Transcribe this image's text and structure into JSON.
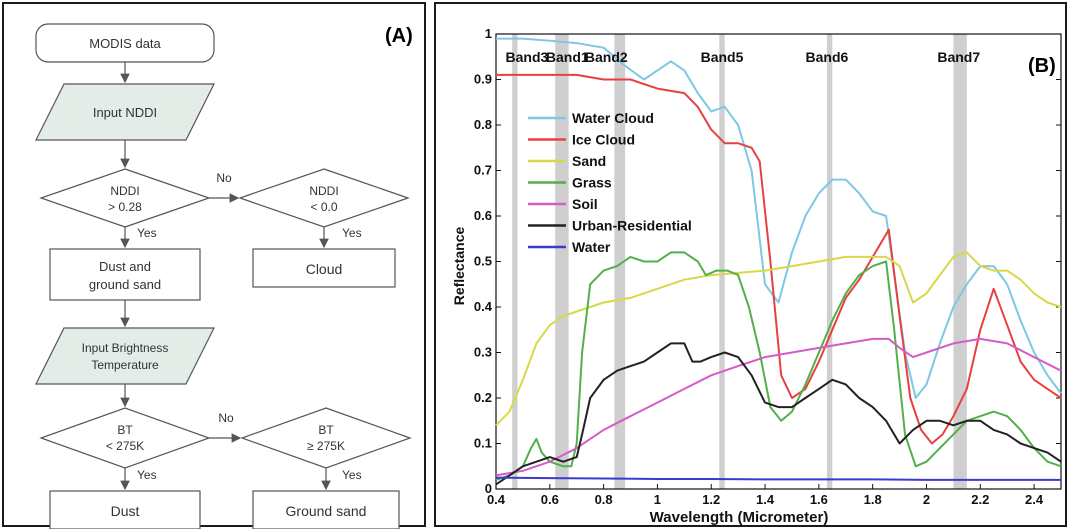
{
  "panel_a": {
    "label": "(A)",
    "nodes": {
      "modis": "MODIS data",
      "input_nddi": "Input NDDI",
      "nddi_gt_1": "NDDI",
      "nddi_gt_2": "> 0.28",
      "nddi_lt_1": "NDDI",
      "nddi_lt_2": "< 0.0",
      "dust_sand_1": "Dust and",
      "dust_sand_2": "ground sand",
      "cloud": "Cloud",
      "input_bt_1": "Input Brightness",
      "input_bt_2": "Temperature",
      "bt_lt_1": "BT",
      "bt_lt_2": "< 275K",
      "bt_ge_1": "BT",
      "bt_ge_2": "≥ 275K",
      "dust": "Dust",
      "ground_sand": "Ground sand"
    },
    "edges": {
      "no_1": "No",
      "yes_1": "Yes",
      "yes_2": "Yes",
      "no_2": "No",
      "yes_3": "Yes",
      "yes_4": "Yes"
    },
    "colors": {
      "io_fill": "#e4ece8",
      "stroke": "#555555"
    }
  },
  "chart_data": {
    "type": "line",
    "panel_label": "(B)",
    "xlabel": "Wavelength (Micrometer)",
    "ylabel": "Reflectance",
    "xlim": [
      0.4,
      2.5
    ],
    "ylim": [
      0,
      1
    ],
    "xticks": [
      "0.4",
      "0.6",
      "0.8",
      "1",
      "1.2",
      "1.4",
      "1.6",
      "1.8",
      "2",
      "2.2",
      "2.4"
    ],
    "yticks": [
      "0",
      "0.1",
      "0.2",
      "0.3",
      "0.4",
      "0.5",
      "0.6",
      "0.7",
      "0.8",
      "0.9",
      "1"
    ],
    "xtick_values": [
      0.4,
      0.6,
      0.8,
      1.0,
      1.2,
      1.4,
      1.6,
      1.8,
      2.0,
      2.2,
      2.4
    ],
    "ytick_values": [
      0,
      0.1,
      0.2,
      0.3,
      0.4,
      0.5,
      0.6,
      0.7,
      0.8,
      0.9,
      1.0
    ],
    "bands": [
      {
        "name": "Band3",
        "x0": 0.46,
        "x1": 0.48
      },
      {
        "name": "Band1",
        "x0": 0.62,
        "x1": 0.67
      },
      {
        "name": "Band2",
        "x0": 0.84,
        "x1": 0.88
      },
      {
        "name": "Band5",
        "x0": 1.23,
        "x1": 1.25
      },
      {
        "name": "Band6",
        "x0": 1.63,
        "x1": 1.65
      },
      {
        "name": "Band7",
        "x0": 2.1,
        "x1": 2.15
      }
    ],
    "band_labels": [
      "Band3",
      "Band1",
      "Band2",
      "Band5",
      "Band6",
      "Band7"
    ],
    "legend_position": "upper-left",
    "series": [
      {
        "name": "Water Cloud",
        "color": "#7ec8e3",
        "x": [
          0.4,
          0.5,
          0.6,
          0.7,
          0.8,
          0.88,
          0.95,
          1.0,
          1.05,
          1.1,
          1.15,
          1.2,
          1.25,
          1.3,
          1.35,
          1.4,
          1.45,
          1.5,
          1.55,
          1.6,
          1.65,
          1.7,
          1.75,
          1.8,
          1.85,
          1.88,
          1.92,
          1.96,
          2.0,
          2.05,
          2.1,
          2.15,
          2.2,
          2.25,
          2.3,
          2.35,
          2.4,
          2.45,
          2.5
        ],
        "y": [
          0.99,
          0.99,
          0.985,
          0.98,
          0.97,
          0.93,
          0.9,
          0.92,
          0.94,
          0.92,
          0.87,
          0.83,
          0.84,
          0.8,
          0.7,
          0.45,
          0.41,
          0.52,
          0.6,
          0.65,
          0.68,
          0.68,
          0.65,
          0.61,
          0.6,
          0.47,
          0.3,
          0.2,
          0.23,
          0.32,
          0.4,
          0.45,
          0.49,
          0.49,
          0.45,
          0.37,
          0.3,
          0.25,
          0.21
        ]
      },
      {
        "name": "Ice Cloud",
        "color": "#e84040",
        "x": [
          0.4,
          0.5,
          0.6,
          0.7,
          0.8,
          0.9,
          1.0,
          1.05,
          1.1,
          1.15,
          1.2,
          1.25,
          1.3,
          1.35,
          1.38,
          1.42,
          1.46,
          1.5,
          1.55,
          1.6,
          1.65,
          1.7,
          1.75,
          1.8,
          1.86,
          1.9,
          1.94,
          1.98,
          2.02,
          2.06,
          2.1,
          2.15,
          2.2,
          2.25,
          2.3,
          2.35,
          2.4,
          2.45,
          2.5
        ],
        "y": [
          0.91,
          0.91,
          0.91,
          0.91,
          0.9,
          0.9,
          0.88,
          0.875,
          0.87,
          0.84,
          0.79,
          0.76,
          0.76,
          0.75,
          0.72,
          0.5,
          0.25,
          0.2,
          0.22,
          0.28,
          0.35,
          0.42,
          0.46,
          0.51,
          0.57,
          0.38,
          0.2,
          0.13,
          0.1,
          0.12,
          0.16,
          0.22,
          0.35,
          0.44,
          0.36,
          0.28,
          0.24,
          0.22,
          0.2
        ]
      },
      {
        "name": "Sand",
        "color": "#d8d84a",
        "x": [
          0.4,
          0.45,
          0.5,
          0.55,
          0.6,
          0.65,
          0.7,
          0.8,
          0.9,
          1.0,
          1.1,
          1.2,
          1.3,
          1.4,
          1.5,
          1.6,
          1.7,
          1.8,
          1.85,
          1.9,
          1.95,
          2.0,
          2.05,
          2.1,
          2.15,
          2.2,
          2.25,
          2.3,
          2.35,
          2.4,
          2.45,
          2.5
        ],
        "y": [
          0.14,
          0.17,
          0.24,
          0.32,
          0.36,
          0.38,
          0.39,
          0.41,
          0.42,
          0.44,
          0.46,
          0.47,
          0.475,
          0.48,
          0.49,
          0.5,
          0.51,
          0.51,
          0.51,
          0.49,
          0.41,
          0.43,
          0.47,
          0.51,
          0.52,
          0.49,
          0.48,
          0.48,
          0.46,
          0.43,
          0.41,
          0.4
        ]
      },
      {
        "name": "Grass",
        "color": "#52b04a",
        "x": [
          0.4,
          0.45,
          0.5,
          0.53,
          0.55,
          0.57,
          0.6,
          0.65,
          0.68,
          0.7,
          0.72,
          0.75,
          0.8,
          0.85,
          0.9,
          0.95,
          1.0,
          1.05,
          1.1,
          1.15,
          1.18,
          1.22,
          1.26,
          1.3,
          1.34,
          1.38,
          1.42,
          1.46,
          1.5,
          1.55,
          1.6,
          1.65,
          1.7,
          1.75,
          1.8,
          1.85,
          1.88,
          1.92,
          1.96,
          2.0,
          2.05,
          2.1,
          2.15,
          2.2,
          2.25,
          2.3,
          2.35,
          2.4,
          2.45,
          2.5
        ],
        "y": [
          0.02,
          0.03,
          0.05,
          0.09,
          0.11,
          0.08,
          0.06,
          0.05,
          0.05,
          0.1,
          0.3,
          0.45,
          0.48,
          0.49,
          0.51,
          0.5,
          0.5,
          0.52,
          0.52,
          0.5,
          0.47,
          0.48,
          0.48,
          0.47,
          0.4,
          0.3,
          0.18,
          0.15,
          0.17,
          0.23,
          0.3,
          0.37,
          0.43,
          0.47,
          0.49,
          0.5,
          0.35,
          0.12,
          0.05,
          0.06,
          0.09,
          0.12,
          0.15,
          0.16,
          0.17,
          0.16,
          0.13,
          0.09,
          0.06,
          0.05
        ]
      },
      {
        "name": "Soil",
        "color": "#d65ac8",
        "x": [
          0.4,
          0.5,
          0.6,
          0.7,
          0.8,
          0.9,
          1.0,
          1.1,
          1.2,
          1.3,
          1.4,
          1.5,
          1.6,
          1.7,
          1.8,
          1.86,
          1.9,
          1.95,
          2.0,
          2.1,
          2.2,
          2.3,
          2.4,
          2.5
        ],
        "y": [
          0.03,
          0.04,
          0.06,
          0.09,
          0.13,
          0.16,
          0.19,
          0.22,
          0.25,
          0.27,
          0.29,
          0.3,
          0.31,
          0.32,
          0.33,
          0.33,
          0.31,
          0.29,
          0.3,
          0.32,
          0.33,
          0.32,
          0.29,
          0.26
        ]
      },
      {
        "name": "Urban-Residential",
        "color": "#222222",
        "x": [
          0.4,
          0.45,
          0.5,
          0.55,
          0.6,
          0.65,
          0.7,
          0.72,
          0.75,
          0.8,
          0.85,
          0.9,
          0.95,
          1.0,
          1.05,
          1.1,
          1.13,
          1.16,
          1.2,
          1.25,
          1.3,
          1.35,
          1.4,
          1.45,
          1.5,
          1.55,
          1.6,
          1.65,
          1.7,
          1.75,
          1.8,
          1.85,
          1.9,
          1.95,
          2.0,
          2.05,
          2.1,
          2.15,
          2.2,
          2.25,
          2.3,
          2.35,
          2.4,
          2.45,
          2.5
        ],
        "y": [
          0.01,
          0.03,
          0.05,
          0.06,
          0.07,
          0.06,
          0.07,
          0.12,
          0.2,
          0.24,
          0.26,
          0.27,
          0.28,
          0.3,
          0.32,
          0.32,
          0.28,
          0.28,
          0.29,
          0.3,
          0.29,
          0.25,
          0.19,
          0.18,
          0.18,
          0.2,
          0.22,
          0.24,
          0.23,
          0.2,
          0.18,
          0.15,
          0.1,
          0.13,
          0.15,
          0.15,
          0.14,
          0.15,
          0.15,
          0.13,
          0.12,
          0.1,
          0.09,
          0.08,
          0.06
        ]
      },
      {
        "name": "Water",
        "color": "#3a3ad0",
        "x": [
          0.4,
          0.6,
          0.8,
          1.0,
          1.2,
          1.4,
          1.6,
          1.8,
          2.0,
          2.2,
          2.4,
          2.5
        ],
        "y": [
          0.025,
          0.024,
          0.023,
          0.022,
          0.022,
          0.021,
          0.021,
          0.021,
          0.02,
          0.02,
          0.02,
          0.02
        ]
      }
    ]
  }
}
